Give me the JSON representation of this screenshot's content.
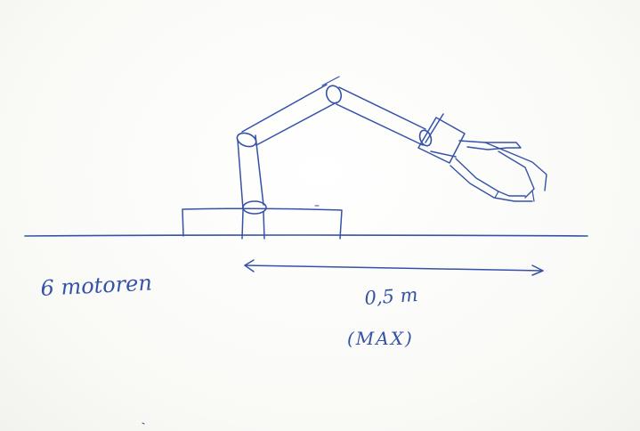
{
  "ink_color": "#3552a8",
  "paper_color": "#fdfdfb",
  "labels": {
    "motors": "6 motoren",
    "reach": "0,5 m",
    "reach_note": "(MAX)"
  }
}
